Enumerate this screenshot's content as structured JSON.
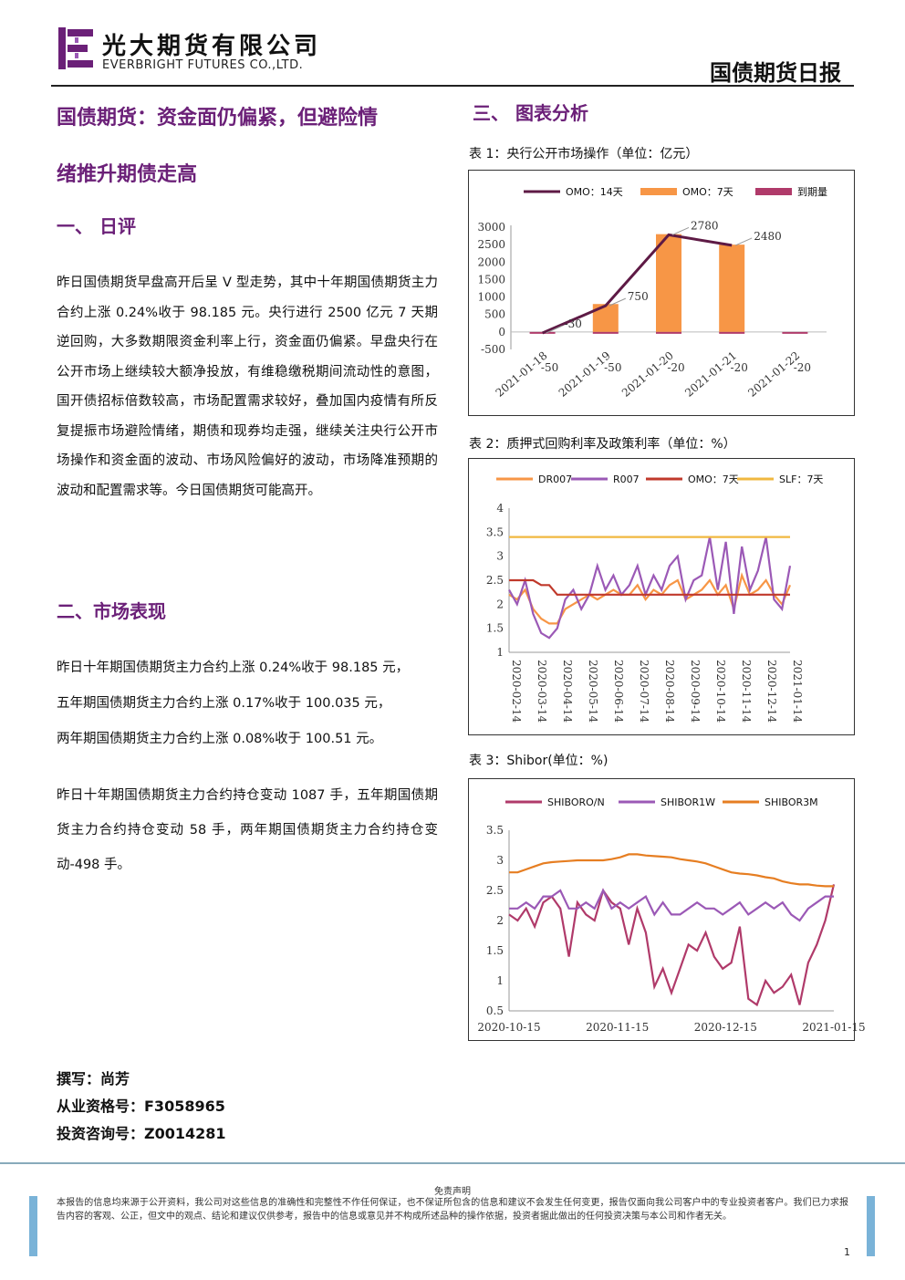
{
  "header": {
    "company_cn": "光大期货有限公司",
    "company_en": "EVERBRIGHT FUTURES CO.,LTD.",
    "report_type": "国债期货日报",
    "brand_color": "#6b2078"
  },
  "title": {
    "line1": "国债期货：资金面仍偏紧，但避险情",
    "line2": "绪推升期债走高"
  },
  "section1": {
    "heading": "一、  日评",
    "text": "昨日国债期货早盘高开后呈 V 型走势，其中十年期国债期货主力合约上涨 0.24%收于 98.185 元。央行进行 2500 亿元 7 天期逆回购，大多数期限资金利率上行，资金面仍偏紧。早盘央行在公开市场上继续较大额净投放，有维稳缴税期间流动性的意图，国开债招标倍数较高，市场配置需求较好，叠加国内疫情有所反复提振市场避险情绪，期债和现券均走强，继续关注央行公开市场操作和资金面的波动、市场风险偏好的波动，市场降准预期的波动和配置需求等。今日国债期货可能高开。"
  },
  "section2": {
    "heading": "二、市场表现",
    "lines": [
      "昨日十年期国债期货主力合约上涨 0.24%收于 98.185 元，",
      "五年期国债期货主力合约上涨 0.17%收于 100.035 元，",
      "两年期国债期货主力合约上涨 0.08%收于 100.51 元。"
    ],
    "text2": "昨日十年期国债期货主力合约持仓变动 1087 手，五年期国债期货主力合约持仓变动 58 手，两年期国债期货主力合约持仓变动-498 手。"
  },
  "section3": {
    "heading": "三、  图表分析"
  },
  "author": {
    "writer": "撰写：尚芳",
    "license": "从业资格号：F3058965",
    "consult": "投资咨询号：Z0014281"
  },
  "footer": {
    "disclaimer_title": "免责声明",
    "disclaimer_text": "本报告的信息均来源于公开资料，我公司对这些信息的准确性和完整性不作任何保证，也不保证所包含的信息和建议不会发生任何变更，报告仅面向我公司客户中的专业投资者客户。我们已力求报告内容的客观、公正，但文中的观点、结论和建议仅供参考，报告中的信息或意见并不构成所述品种的操作依据，投资者据此做出的任何投资决策与本公司和作者无关。",
    "page": "1"
  },
  "chart_data": [
    {
      "type": "bar",
      "caption": "表 1：央行公开市场操作（单位：亿元）",
      "categories": [
        "2021-01-18",
        "2021-01-19",
        "2021-01-20",
        "2021-01-21",
        "2021-01-22"
      ],
      "series": [
        {
          "name": "OMO：14天",
          "kind": "line",
          "color": "#5e1a45",
          "values": [
            -30,
            750,
            2780,
            2480,
            null
          ]
        },
        {
          "name": "OMO：7天",
          "kind": "bar",
          "color": "#f79646",
          "values": [
            0,
            800,
            2800,
            2500,
            0
          ]
        },
        {
          "name": "到期量",
          "kind": "bar",
          "color": "#b03a6a",
          "values": [
            -50,
            -50,
            -20,
            -20,
            -20
          ]
        }
      ],
      "data_labels": [
        {
          "text": "-30",
          "value": -30
        },
        {
          "text": "750",
          "value": 750
        },
        {
          "text": "2780",
          "value": 2780
        },
        {
          "text": "2480",
          "value": 2480
        }
      ],
      "y_ticks": [
        "3000",
        "2500",
        "2000",
        "1500",
        "1000",
        "500",
        "0",
        "-500"
      ],
      "ylim": [
        -500,
        3000
      ],
      "cat_labels": [
        "2021-01-18",
        "2021-01-19",
        "2021-01-20",
        "2021-01-21",
        "2021-01-22"
      ],
      "cat_values": [
        "-50",
        "-50",
        "-20",
        "-20",
        "-20"
      ]
    },
    {
      "type": "line",
      "caption": "表 2：质押式回购利率及政策利率（单位：%）",
      "x_ticks": [
        "2020-02-14",
        "2020-03-14",
        "2020-04-14",
        "2020-05-14",
        "2020-06-14",
        "2020-07-14",
        "2020-08-14",
        "2020-09-14",
        "2020-10-14",
        "2020-11-14",
        "2020-12-14",
        "2021-01-14"
      ],
      "y_ticks": [
        "4",
        "3.5",
        "3",
        "2.5",
        "2",
        "1.5",
        "1"
      ],
      "ylim": [
        1,
        4
      ],
      "series": [
        {
          "name": "DR007",
          "color": "#f79646",
          "values": [
            2.2,
            2.1,
            2.3,
            1.9,
            1.7,
            1.6,
            1.6,
            1.9,
            2.0,
            2.1,
            2.2,
            2.1,
            2.2,
            2.3,
            2.2,
            2.2,
            2.4,
            2.1,
            2.3,
            2.2,
            2.4,
            2.5,
            2.1,
            2.2,
            2.3,
            2.5,
            2.2,
            2.4,
            1.9,
            2.6,
            2.2,
            2.3,
            2.5,
            2.2,
            2.0,
            2.4
          ]
        },
        {
          "name": "R007",
          "color": "#9b59b6",
          "values": [
            2.3,
            2.0,
            2.5,
            1.8,
            1.4,
            1.3,
            1.5,
            2.1,
            2.3,
            1.9,
            2.2,
            2.8,
            2.3,
            2.6,
            2.2,
            2.4,
            2.8,
            2.2,
            2.6,
            2.3,
            2.8,
            3.0,
            2.1,
            2.5,
            2.6,
            3.4,
            2.3,
            3.3,
            1.8,
            3.2,
            2.3,
            2.7,
            3.4,
            2.1,
            1.9,
            2.8
          ]
        },
        {
          "name": "OMO：7天",
          "color": "#c0392b",
          "values": [
            2.5,
            2.5,
            2.5,
            2.5,
            2.4,
            2.4,
            2.2,
            2.2,
            2.2,
            2.2,
            2.2,
            2.2,
            2.2,
            2.2,
            2.2,
            2.2,
            2.2,
            2.2,
            2.2,
            2.2,
            2.2,
            2.2,
            2.2,
            2.2,
            2.2,
            2.2,
            2.2,
            2.2,
            2.2,
            2.2,
            2.2,
            2.2,
            2.2,
            2.2,
            2.2,
            2.2
          ]
        },
        {
          "name": "SLF：7天",
          "color": "#f0b840",
          "values": [
            3.4,
            3.4,
            3.4,
            3.4,
            3.4,
            3.4,
            3.4,
            3.4,
            3.4,
            3.4,
            3.4,
            3.4,
            3.4,
            3.4,
            3.4,
            3.4,
            3.4,
            3.4,
            3.4,
            3.4,
            3.4,
            3.4,
            3.4,
            3.4,
            3.4,
            3.4,
            3.4,
            3.4,
            3.4,
            3.4,
            3.4,
            3.4,
            3.4,
            3.4,
            3.4,
            3.4
          ]
        }
      ]
    },
    {
      "type": "line",
      "caption": "表 3：Shibor(单位：%)",
      "x_ticks": [
        "2020-10-15",
        "2020-11-15",
        "2020-12-15",
        "2021-01-15"
      ],
      "y_ticks": [
        "3.5",
        "3",
        "2.5",
        "2",
        "1.5",
        "1",
        "0.5"
      ],
      "ylim": [
        0.5,
        3.5
      ],
      "series": [
        {
          "name": "SHIBORO/N",
          "color": "#b03a6a",
          "values": [
            2.1,
            2.0,
            2.2,
            1.9,
            2.3,
            2.4,
            2.2,
            1.4,
            2.3,
            2.1,
            2.0,
            2.5,
            2.3,
            2.2,
            1.6,
            2.2,
            1.8,
            0.9,
            1.2,
            0.8,
            1.2,
            1.6,
            1.5,
            1.8,
            1.4,
            1.2,
            1.3,
            1.9,
            0.7,
            0.6,
            1.0,
            0.8,
            0.9,
            1.1,
            0.6,
            1.3,
            1.6,
            2.0,
            2.6
          ]
        },
        {
          "name": "SHIBOR1W",
          "color": "#9b59b6",
          "values": [
            2.2,
            2.2,
            2.3,
            2.2,
            2.4,
            2.4,
            2.5,
            2.2,
            2.2,
            2.3,
            2.2,
            2.5,
            2.2,
            2.3,
            2.2,
            2.3,
            2.4,
            2.1,
            2.3,
            2.1,
            2.1,
            2.2,
            2.3,
            2.2,
            2.2,
            2.1,
            2.2,
            2.3,
            2.1,
            2.2,
            2.3,
            2.2,
            2.3,
            2.1,
            2.0,
            2.2,
            2.3,
            2.4,
            2.4
          ]
        },
        {
          "name": "SHIBOR3M",
          "color": "#e67e22",
          "values": [
            2.8,
            2.8,
            2.85,
            2.9,
            2.95,
            2.97,
            2.98,
            2.99,
            3.0,
            3.0,
            3.0,
            3.0,
            3.02,
            3.05,
            3.1,
            3.1,
            3.08,
            3.07,
            3.06,
            3.05,
            3.02,
            3.0,
            2.98,
            2.95,
            2.9,
            2.85,
            2.8,
            2.78,
            2.77,
            2.75,
            2.72,
            2.7,
            2.65,
            2.62,
            2.6,
            2.6,
            2.58,
            2.57,
            2.57
          ]
        }
      ]
    }
  ]
}
